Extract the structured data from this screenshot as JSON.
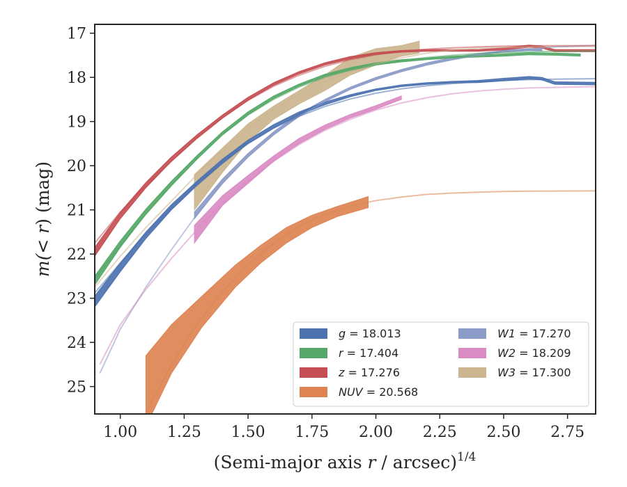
{
  "chart_data": {
    "type": "line",
    "title": "",
    "xlabel": "(Semi-major axis r / arcsec)",
    "xlabel_var": "r",
    "xlabel_pre": "(Semi-major axis ",
    "xlabel_post": " / arcsec)",
    "xlabel_sup": "1/4",
    "ylabel": "m(< r) (mag)",
    "ylabel_func": "m(",
    "ylabel_lt": "< ",
    "ylabel_var": "r",
    "ylabel_post": ") (mag)",
    "xlim": [
      0.9,
      2.86
    ],
    "ylim": [
      25.62,
      16.8
    ],
    "y_inverted": true,
    "xticks": [
      "1.00",
      "1.25",
      "1.50",
      "1.75",
      "2.00",
      "2.25",
      "2.50",
      "2.75"
    ],
    "xtick_values": [
      1.0,
      1.25,
      1.5,
      1.75,
      2.0,
      2.25,
      2.5,
      2.75
    ],
    "yticks": [
      "17",
      "18",
      "19",
      "20",
      "21",
      "22",
      "23",
      "24",
      "25"
    ],
    "ytick_values": [
      17,
      18,
      19,
      20,
      21,
      22,
      23,
      24,
      25
    ],
    "grid": false,
    "legend_position": "bottom-right",
    "series": [
      {
        "name": "g",
        "legend_label": "g = 18.013",
        "legend_var": "g",
        "legend_value": "18.013",
        "color": "#4c72b0",
        "model": [
          [
            0.9,
            22.88
          ],
          [
            1.0,
            22.2
          ],
          [
            1.1,
            21.55
          ],
          [
            1.2,
            20.95
          ],
          [
            1.3,
            20.4
          ],
          [
            1.4,
            19.9
          ],
          [
            1.5,
            19.5
          ],
          [
            1.6,
            19.15
          ],
          [
            1.7,
            18.88
          ],
          [
            1.8,
            18.66
          ],
          [
            1.9,
            18.49
          ],
          [
            2.0,
            18.36
          ],
          [
            2.1,
            18.26
          ],
          [
            2.2,
            18.19
          ],
          [
            2.3,
            18.14
          ],
          [
            2.4,
            18.1
          ],
          [
            2.5,
            18.07
          ],
          [
            2.6,
            18.05
          ],
          [
            2.7,
            18.04
          ],
          [
            2.86,
            18.03
          ]
        ],
        "band": [
          [
            0.9,
            23.2,
            22.95
          ],
          [
            1.0,
            22.4,
            22.2
          ],
          [
            1.1,
            21.65,
            21.5
          ],
          [
            1.2,
            21.0,
            20.88
          ],
          [
            1.3,
            20.45,
            20.35
          ],
          [
            1.4,
            19.95,
            19.85
          ],
          [
            1.5,
            19.5,
            19.42
          ],
          [
            1.6,
            19.15,
            19.07
          ],
          [
            1.7,
            18.85,
            18.78
          ],
          [
            1.8,
            18.62,
            18.56
          ],
          [
            1.9,
            18.44,
            18.39
          ],
          [
            2.0,
            18.3,
            18.26
          ],
          [
            2.1,
            18.21,
            18.17
          ],
          [
            2.2,
            18.16,
            18.12
          ],
          [
            2.3,
            18.13,
            18.09
          ],
          [
            2.4,
            18.12,
            18.07
          ],
          [
            2.5,
            18.08,
            18.02
          ],
          [
            2.55,
            18.06,
            18.0
          ],
          [
            2.6,
            18.04,
            17.98
          ],
          [
            2.65,
            18.06,
            18.0
          ],
          [
            2.7,
            18.16,
            18.1
          ],
          [
            2.86,
            18.17,
            18.11
          ]
        ]
      },
      {
        "name": "r",
        "legend_label": "r = 17.404",
        "legend_var": "r",
        "legend_value": "17.404",
        "color": "#55a868",
        "model": [
          [
            0.9,
            22.55
          ],
          [
            1.0,
            21.8
          ],
          [
            1.1,
            21.1
          ],
          [
            1.2,
            20.45
          ],
          [
            1.3,
            19.85
          ],
          [
            1.4,
            19.3
          ],
          [
            1.5,
            18.85
          ],
          [
            1.6,
            18.5
          ],
          [
            1.7,
            18.22
          ],
          [
            1.8,
            18.0
          ],
          [
            1.9,
            17.84
          ],
          [
            2.0,
            17.72
          ],
          [
            2.1,
            17.62
          ],
          [
            2.2,
            17.55
          ],
          [
            2.3,
            17.5
          ],
          [
            2.4,
            17.46
          ],
          [
            2.5,
            17.44
          ],
          [
            2.6,
            17.42
          ],
          [
            2.7,
            17.41
          ],
          [
            2.86,
            17.405
          ]
        ],
        "band": [
          [
            0.9,
            22.7,
            22.5
          ],
          [
            1.0,
            21.85,
            21.7
          ],
          [
            1.1,
            21.1,
            20.98
          ],
          [
            1.2,
            20.45,
            20.35
          ],
          [
            1.3,
            19.85,
            19.77
          ],
          [
            1.4,
            19.3,
            19.23
          ],
          [
            1.5,
            18.85,
            18.78
          ],
          [
            1.6,
            18.48,
            18.42
          ],
          [
            1.7,
            18.2,
            18.15
          ],
          [
            1.8,
            17.98,
            17.93
          ],
          [
            1.9,
            17.83,
            17.78
          ],
          [
            2.0,
            17.72,
            17.67
          ],
          [
            2.1,
            17.65,
            17.6
          ],
          [
            2.2,
            17.6,
            17.56
          ],
          [
            2.3,
            17.56,
            17.52
          ],
          [
            2.4,
            17.54,
            17.5
          ],
          [
            2.5,
            17.52,
            17.47
          ],
          [
            2.6,
            17.49,
            17.44
          ],
          [
            2.7,
            17.5,
            17.45
          ],
          [
            2.8,
            17.52,
            17.47
          ]
        ]
      },
      {
        "name": "z",
        "legend_label": "z = 17.276",
        "legend_var": "z",
        "legend_value": "17.276",
        "color": "#c44e52",
        "model": [
          [
            0.9,
            21.75
          ],
          [
            1.0,
            21.05
          ],
          [
            1.1,
            20.45
          ],
          [
            1.2,
            19.9
          ],
          [
            1.3,
            19.38
          ],
          [
            1.4,
            18.92
          ],
          [
            1.5,
            18.52
          ],
          [
            1.6,
            18.2
          ],
          [
            1.7,
            17.95
          ],
          [
            1.8,
            17.75
          ],
          [
            1.9,
            17.6
          ],
          [
            2.0,
            17.49
          ],
          [
            2.1,
            17.41
          ],
          [
            2.2,
            17.36
          ],
          [
            2.3,
            17.33
          ],
          [
            2.4,
            17.31
          ],
          [
            2.5,
            17.295
          ],
          [
            2.6,
            17.285
          ],
          [
            2.86,
            17.28
          ]
        ],
        "band": [
          [
            0.9,
            22.05,
            21.85
          ],
          [
            1.0,
            21.2,
            21.05
          ],
          [
            1.1,
            20.5,
            20.38
          ],
          [
            1.2,
            19.9,
            19.8
          ],
          [
            1.3,
            19.38,
            19.3
          ],
          [
            1.4,
            18.92,
            18.85
          ],
          [
            1.5,
            18.52,
            18.45
          ],
          [
            1.6,
            18.18,
            18.12
          ],
          [
            1.7,
            17.92,
            17.87
          ],
          [
            1.8,
            17.72,
            17.67
          ],
          [
            1.9,
            17.58,
            17.53
          ],
          [
            2.0,
            17.48,
            17.44
          ],
          [
            2.1,
            17.43,
            17.39
          ],
          [
            2.2,
            17.41,
            17.37
          ],
          [
            2.3,
            17.41,
            17.37
          ],
          [
            2.4,
            17.41,
            17.37
          ],
          [
            2.5,
            17.38,
            17.33
          ],
          [
            2.6,
            17.32,
            17.27
          ],
          [
            2.65,
            17.34,
            17.29
          ],
          [
            2.7,
            17.42,
            17.37
          ],
          [
            2.86,
            17.42,
            17.37
          ]
        ]
      },
      {
        "name": "NUV",
        "legend_label": "NUV = 20.568",
        "legend_var": "NUV",
        "legend_value": "20.568",
        "color": "#dd8452",
        "model": [
          [
            1.0,
            26.6
          ],
          [
            1.1,
            25.6
          ],
          [
            1.2,
            24.5
          ],
          [
            1.3,
            23.6
          ],
          [
            1.4,
            22.85
          ],
          [
            1.5,
            22.25
          ],
          [
            1.6,
            21.75
          ],
          [
            1.7,
            21.37
          ],
          [
            1.8,
            21.1
          ],
          [
            1.9,
            20.91
          ],
          [
            2.0,
            20.79
          ],
          [
            2.1,
            20.71
          ],
          [
            2.2,
            20.65
          ],
          [
            2.3,
            20.62
          ],
          [
            2.4,
            20.6
          ],
          [
            2.5,
            20.585
          ],
          [
            2.6,
            20.577
          ],
          [
            2.86,
            20.57
          ]
        ],
        "band": [
          [
            1.1,
            25.9,
            24.3
          ],
          [
            1.2,
            24.7,
            23.6
          ],
          [
            1.32,
            23.65,
            22.95
          ],
          [
            1.45,
            22.75,
            22.25
          ],
          [
            1.55,
            22.2,
            21.8
          ],
          [
            1.65,
            21.75,
            21.4
          ],
          [
            1.75,
            21.4,
            21.12
          ],
          [
            1.85,
            21.15,
            20.92
          ],
          [
            1.97,
            20.95,
            20.7
          ]
        ]
      },
      {
        "name": "W1",
        "legend_label": "W1 = 17.270",
        "legend_var": "W1",
        "legend_value": "17.270",
        "color": "#8c9bc8",
        "model": [
          [
            0.92,
            24.7
          ],
          [
            1.0,
            23.7
          ],
          [
            1.1,
            22.75
          ],
          [
            1.2,
            21.9
          ],
          [
            1.3,
            21.1
          ],
          [
            1.4,
            20.4
          ],
          [
            1.5,
            19.8
          ],
          [
            1.6,
            19.3
          ],
          [
            1.7,
            18.88
          ],
          [
            1.8,
            18.55
          ],
          [
            1.9,
            18.27
          ],
          [
            2.0,
            18.05
          ],
          [
            2.1,
            17.87
          ],
          [
            2.2,
            17.72
          ],
          [
            2.3,
            17.6
          ],
          [
            2.4,
            17.5
          ],
          [
            2.5,
            17.42
          ],
          [
            2.6,
            17.36
          ],
          [
            2.7,
            17.31
          ],
          [
            2.86,
            17.275
          ]
        ],
        "band": [
          [
            1.29,
            21.2,
            21.05
          ],
          [
            1.4,
            20.4,
            20.3
          ],
          [
            1.5,
            19.8,
            19.72
          ],
          [
            1.6,
            19.3,
            19.23
          ],
          [
            1.7,
            18.88,
            18.82
          ],
          [
            1.8,
            18.55,
            18.5
          ],
          [
            1.9,
            18.27,
            18.22
          ],
          [
            2.0,
            18.05,
            18.0
          ],
          [
            2.1,
            17.87,
            17.82
          ],
          [
            2.2,
            17.72,
            17.67
          ],
          [
            2.3,
            17.6,
            17.55
          ],
          [
            2.4,
            17.5,
            17.46
          ],
          [
            2.5,
            17.43,
            17.39
          ],
          [
            2.6,
            17.39,
            17.35
          ],
          [
            2.65,
            17.4,
            17.36
          ]
        ]
      },
      {
        "name": "W2",
        "legend_label": "W2 = 18.209",
        "legend_var": "W2",
        "legend_value": "18.209",
        "color": "#da8bc3",
        "model": [
          [
            0.92,
            24.5
          ],
          [
            1.0,
            23.6
          ],
          [
            1.1,
            22.8
          ],
          [
            1.2,
            22.1
          ],
          [
            1.3,
            21.45
          ],
          [
            1.4,
            20.85
          ],
          [
            1.5,
            20.35
          ],
          [
            1.6,
            19.9
          ],
          [
            1.7,
            19.52
          ],
          [
            1.8,
            19.2
          ],
          [
            1.9,
            18.95
          ],
          [
            2.0,
            18.74
          ],
          [
            2.1,
            18.58
          ],
          [
            2.2,
            18.46
          ],
          [
            2.3,
            18.37
          ],
          [
            2.4,
            18.31
          ],
          [
            2.5,
            18.27
          ],
          [
            2.6,
            18.24
          ],
          [
            2.86,
            18.21
          ]
        ],
        "band": [
          [
            1.29,
            21.75,
            21.35
          ],
          [
            1.4,
            20.9,
            20.68
          ],
          [
            1.5,
            20.4,
            20.22
          ],
          [
            1.6,
            19.9,
            19.78
          ],
          [
            1.7,
            19.5,
            19.38
          ],
          [
            1.8,
            19.18,
            19.08
          ],
          [
            1.9,
            18.92,
            18.84
          ],
          [
            2.0,
            18.72,
            18.64
          ],
          [
            2.1,
            18.5,
            18.42
          ]
        ]
      },
      {
        "name": "W3",
        "legend_label": "W3 = 17.300",
        "legend_var": "W3",
        "legend_value": "17.300",
        "color": "#ccb58f",
        "model": [
          [
            0.9,
            22.75
          ],
          [
            1.0,
            22.05
          ],
          [
            1.1,
            21.4
          ],
          [
            1.2,
            20.8
          ],
          [
            1.3,
            20.2
          ],
          [
            1.4,
            19.65
          ],
          [
            1.5,
            19.15
          ],
          [
            1.6,
            18.72
          ],
          [
            1.7,
            18.38
          ],
          [
            1.8,
            18.1
          ],
          [
            1.9,
            17.88
          ],
          [
            2.0,
            17.7
          ],
          [
            2.1,
            17.56
          ],
          [
            2.2,
            17.45
          ],
          [
            2.3,
            17.38
          ],
          [
            2.4,
            17.34
          ],
          [
            2.5,
            17.32
          ],
          [
            2.6,
            17.31
          ],
          [
            2.86,
            17.3
          ]
        ],
        "band": [
          [
            1.29,
            21.0,
            20.2
          ],
          [
            1.4,
            20.15,
            19.6
          ],
          [
            1.5,
            19.45,
            19.05
          ],
          [
            1.6,
            18.95,
            18.65
          ],
          [
            1.7,
            18.6,
            18.3
          ],
          [
            1.8,
            18.3,
            17.95
          ],
          [
            1.9,
            17.95,
            17.55
          ],
          [
            2.0,
            17.72,
            17.35
          ],
          [
            2.1,
            17.52,
            17.28
          ],
          [
            2.17,
            17.45,
            17.18
          ]
        ]
      }
    ]
  }
}
